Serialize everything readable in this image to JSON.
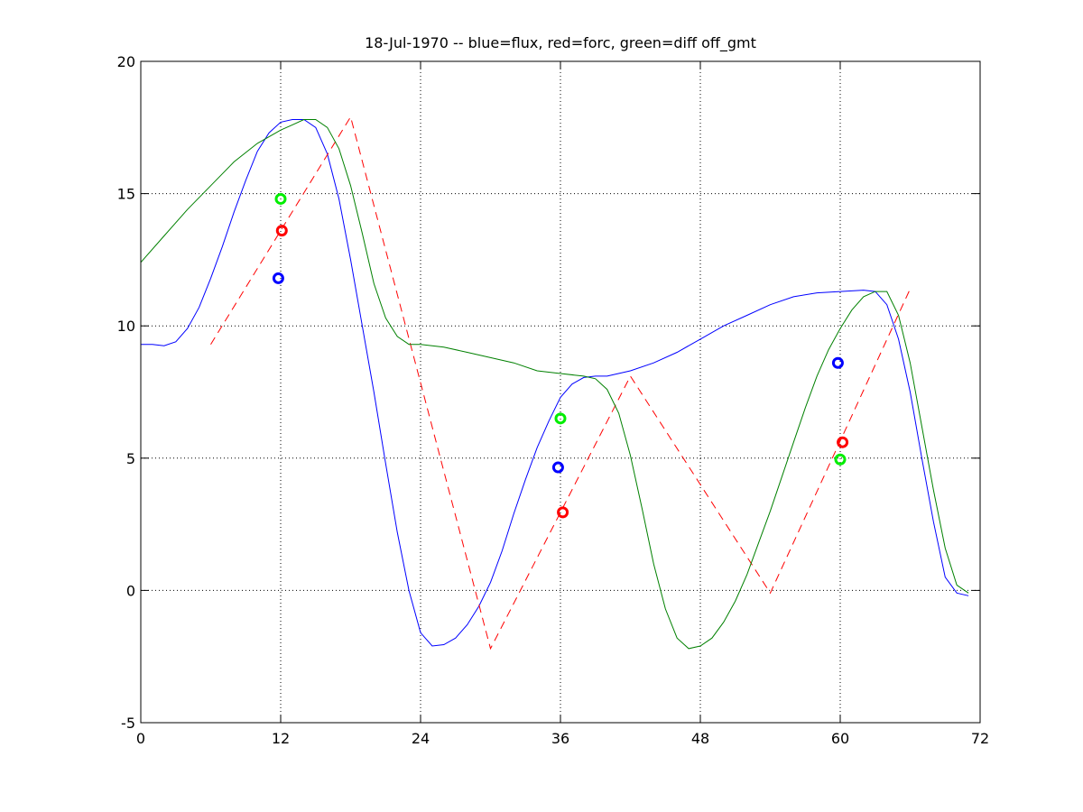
{
  "chart_data": {
    "type": "line",
    "title": "18-Jul-1970 -- blue=flux, red=forc, green=diff off_gmt",
    "xlabel": "",
    "ylabel": "",
    "xlim": [
      0,
      72
    ],
    "ylim": [
      -5,
      20
    ],
    "x_ticks": [
      0,
      12,
      24,
      36,
      48,
      60,
      72
    ],
    "y_ticks": [
      -5,
      0,
      5,
      10,
      15,
      20
    ],
    "grid": true,
    "series": [
      {
        "color": "#0000ff",
        "style": "solid",
        "x": [
          0,
          1,
          2,
          3,
          4,
          5,
          6,
          7,
          8,
          9,
          10,
          11,
          12,
          13,
          14,
          15,
          16,
          17,
          18,
          19,
          20,
          21,
          22,
          23,
          24,
          25,
          26,
          27,
          28,
          29,
          30,
          31,
          32,
          33,
          34,
          35,
          36,
          37,
          38,
          39,
          40,
          42,
          44,
          46,
          48,
          50,
          52,
          54,
          56,
          58,
          60,
          62,
          63,
          64,
          65,
          66,
          67,
          68,
          69,
          70,
          71
        ],
        "values": [
          9.3,
          9.3,
          9.25,
          9.4,
          9.9,
          10.7,
          11.8,
          13.0,
          14.3,
          15.5,
          16.6,
          17.3,
          17.7,
          17.8,
          17.8,
          17.5,
          16.5,
          14.8,
          12.5,
          10.0,
          7.5,
          4.8,
          2.2,
          0.0,
          -1.6,
          -2.1,
          -2.05,
          -1.8,
          -1.3,
          -0.6,
          0.3,
          1.5,
          2.9,
          4.2,
          5.4,
          6.4,
          7.3,
          7.8,
          8.05,
          8.1,
          8.1,
          8.3,
          8.6,
          9.0,
          9.5,
          10.0,
          10.4,
          10.8,
          11.1,
          11.25,
          11.3,
          11.35,
          11.3,
          10.8,
          9.5,
          7.5,
          5.0,
          2.6,
          0.5,
          -0.1,
          -0.2
        ]
      },
      {
        "color": "#ff0000",
        "style": "dashed",
        "x": [
          6,
          18,
          30,
          42,
          54,
          66
        ],
        "values": [
          9.3,
          17.9,
          -2.2,
          8.1,
          -0.1,
          11.4
        ]
      },
      {
        "color": "#008000",
        "style": "solid",
        "x": [
          0,
          2,
          4,
          6,
          8,
          10,
          12,
          13,
          14,
          15,
          16,
          17,
          18,
          19,
          20,
          21,
          22,
          23,
          24,
          26,
          28,
          30,
          32,
          34,
          36,
          38,
          39,
          40,
          41,
          42,
          43,
          44,
          45,
          46,
          47,
          48,
          49,
          50,
          51,
          52,
          53,
          54,
          55,
          56,
          57,
          58,
          59,
          60,
          61,
          62,
          63,
          64,
          65,
          66,
          67,
          68,
          69,
          70,
          71
        ],
        "values": [
          12.4,
          13.4,
          14.4,
          15.3,
          16.2,
          16.9,
          17.4,
          17.6,
          17.8,
          17.8,
          17.5,
          16.7,
          15.3,
          13.5,
          11.6,
          10.3,
          9.6,
          9.3,
          9.3,
          9.2,
          9.0,
          8.8,
          8.6,
          8.3,
          8.2,
          8.1,
          8.0,
          7.6,
          6.7,
          5.1,
          3.1,
          1.0,
          -0.7,
          -1.8,
          -2.2,
          -2.1,
          -1.8,
          -1.2,
          -0.4,
          0.6,
          1.8,
          3.0,
          4.3,
          5.6,
          6.9,
          8.1,
          9.1,
          9.9,
          10.6,
          11.1,
          11.3,
          11.3,
          10.4,
          8.6,
          6.2,
          3.8,
          1.6,
          0.2,
          -0.1
        ]
      }
    ],
    "markers": [
      {
        "color": "#0000ff",
        "x": 11.8,
        "y": 11.8
      },
      {
        "color": "#ff0000",
        "x": 12.1,
        "y": 13.6
      },
      {
        "color": "#00ee00",
        "x": 12.0,
        "y": 14.8
      },
      {
        "color": "#0000ff",
        "x": 35.8,
        "y": 4.65
      },
      {
        "color": "#ff0000",
        "x": 36.2,
        "y": 2.95
      },
      {
        "color": "#00ee00",
        "x": 36.0,
        "y": 6.5
      },
      {
        "color": "#0000ff",
        "x": 59.8,
        "y": 8.6
      },
      {
        "color": "#ff0000",
        "x": 60.2,
        "y": 5.6
      },
      {
        "color": "#00ee00",
        "x": 60.0,
        "y": 4.95
      }
    ]
  }
}
